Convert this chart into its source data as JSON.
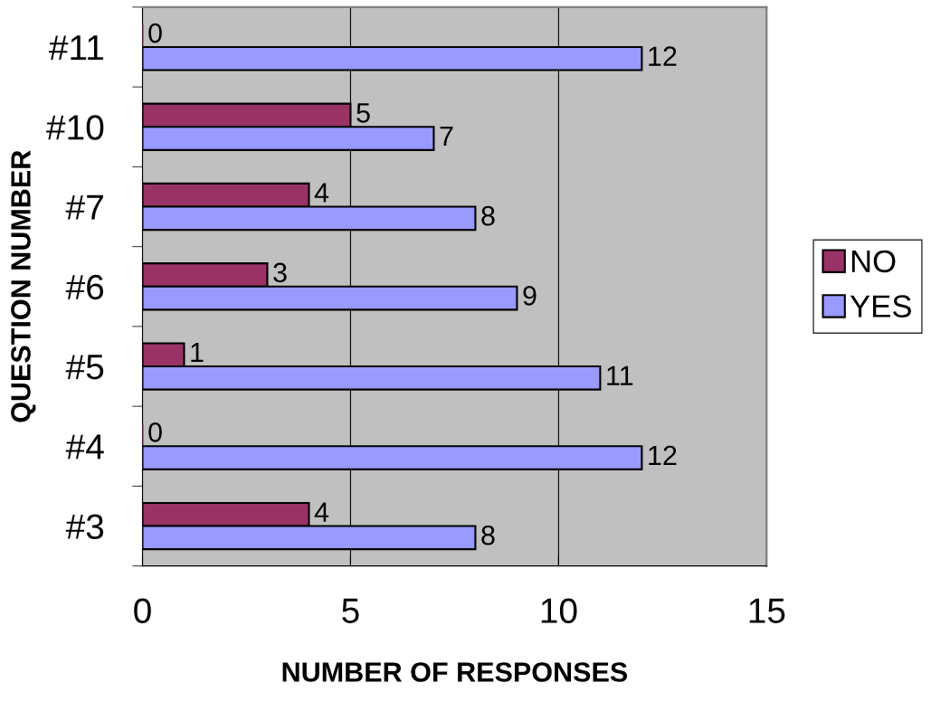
{
  "chart_data": {
    "type": "bar",
    "orientation": "horizontal",
    "xlabel": "NUMBER OF RESPONSES",
    "ylabel": "QUESTION NUMBER",
    "categories": [
      "#11",
      "#10",
      "#7",
      "#6",
      "#5",
      "#4",
      "#3"
    ],
    "series": [
      {
        "name": "NO",
        "color": "#993366",
        "values": [
          0,
          5,
          4,
          3,
          1,
          0,
          4
        ]
      },
      {
        "name": "YES",
        "color": "#9999ff",
        "values": [
          12,
          7,
          8,
          9,
          11,
          12,
          8
        ]
      }
    ],
    "xlim": [
      0,
      15
    ],
    "xticks": [
      0,
      5,
      10,
      15
    ],
    "grid": "x",
    "legend": "right",
    "data_labels": true
  }
}
